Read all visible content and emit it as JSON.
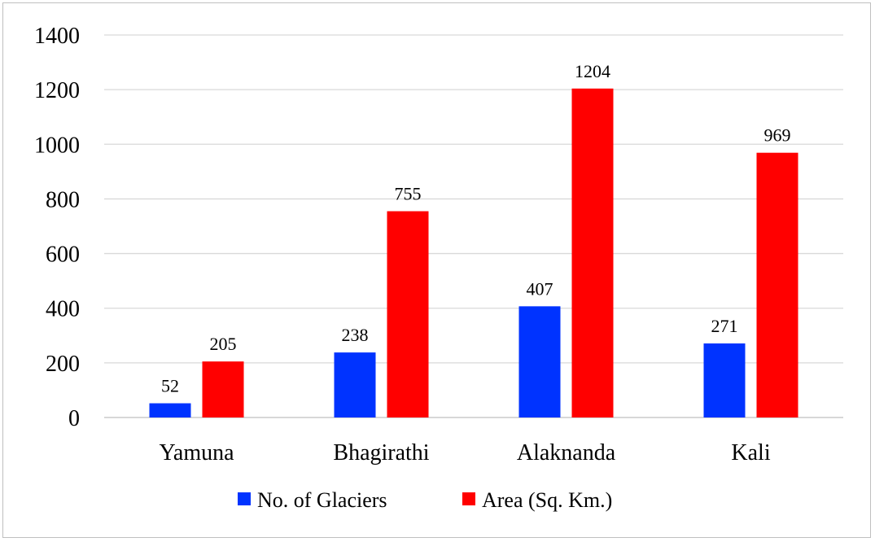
{
  "chart_data": {
    "type": "bar",
    "categories": [
      "Yamuna",
      "Bhagirathi",
      "Alaknanda",
      "Kali"
    ],
    "series": [
      {
        "name": "No. of Glaciers",
        "values": [
          52,
          238,
          407,
          271
        ],
        "color": "#0033ff"
      },
      {
        "name": "Area (Sq. Km.)",
        "values": [
          205,
          755,
          1204,
          969
        ],
        "color": "#ff0000"
      }
    ],
    "ylim": [
      0,
      1400
    ],
    "yticks": [
      0,
      200,
      400,
      600,
      800,
      1000,
      1200,
      1400
    ],
    "grid": true,
    "legend_position": "bottom",
    "title": "",
    "xlabel": "",
    "ylabel": ""
  }
}
